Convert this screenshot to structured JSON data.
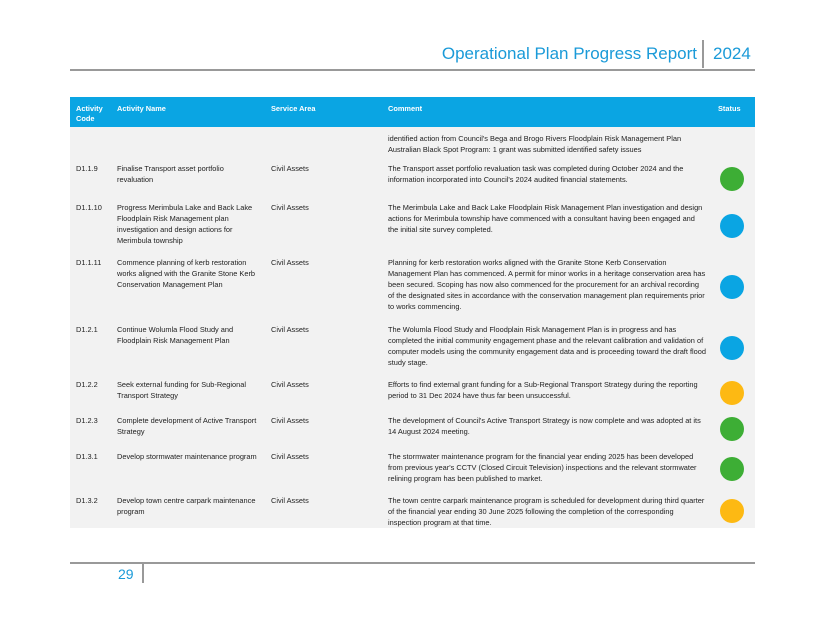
{
  "header": {
    "title": "Operational Plan Progress Report",
    "year": "2024"
  },
  "table": {
    "columns": [
      "Activity Code",
      "Activity Name",
      "Service Area",
      "Comment",
      "Status"
    ],
    "rows": [
      {
        "comment": "identified action from Council's Bega and Brogo Rivers Floodplain Risk Management Plan Australian Black Spot Program:  1 grant was submitted identified safety issues"
      },
      {
        "code": "D1.1.9",
        "name": "Finalise Transport asset portfolio revaluation",
        "area": "Civil Assets",
        "comment": "The Transport asset portfolio revaluation task was completed during October 2024 and the information incorporated into Council's 2024 audited financial statements.",
        "status_color": "#3dae35"
      },
      {
        "code": "D1.1.10",
        "name": "Progress Merimbula Lake and Back Lake Floodplain Risk Management plan investigation and design actions for Merimbula township",
        "area": "Civil Assets",
        "comment": "The Merimbula Lake and Back Lake Floodplain Risk Management Plan investigation and design actions for Merimbula township have commenced with a consultant having been engaged and the initial site survey completed.",
        "status_color": "#0aa5e3"
      },
      {
        "code": "D1.1.11",
        "name": "Commence planning of kerb restoration works aligned with the Granite Stone Kerb Conservation Management Plan",
        "area": "Civil Assets",
        "comment": "Planning for kerb restoration works aligned with the Granite Stone Kerb Conservation Management Plan has commenced.  A permit for minor works in a heritage conservation area has been secured.  Scoping has now also commenced for the procurement for an archival recording of the designated sites in accordance with the conservation management plan requirements prior to works commencing.",
        "status_color": "#0aa5e3"
      },
      {
        "code": "D1.2.1",
        "name": "Continue Wolumla Flood Study and Floodplain Risk Management Plan",
        "area": "Civil Assets",
        "comment": "The Wolumla Flood Study and Floodplain Risk Management Plan is in progress and has completed the initial community engagement phase and the relevant calibration and validation of computer models using the community engagement data and is proceeding toward the draft flood study stage.",
        "status_color": "#0aa5e3"
      },
      {
        "code": "D1.2.2",
        "name": "Seek external funding for Sub-Regional Transport Strategy",
        "area": "Civil Assets",
        "comment": "Efforts to find external grant funding for a Sub-Regional Transport Strategy during the reporting period to 31 Dec 2024 have thus far been unsuccessful.",
        "status_color": "#fdb913"
      },
      {
        "code": "D1.2.3",
        "name": "Complete development of Active Transport Strategy",
        "area": "Civil Assets",
        "comment": "The development of Council's Active Transport Strategy is now complete and was adopted at its 14 August 2024 meeting.",
        "status_color": "#3dae35"
      },
      {
        "code": "D1.3.1",
        "name": "Develop stormwater maintenance program",
        "area": "Civil Assets",
        "comment": "The stormwater maintenance program for the financial year ending 2025 has been developed from previous year's CCTV (Closed Circuit Television) inspections and the relevant stormwater relining program has been published to market.",
        "status_color": "#3dae35"
      },
      {
        "code": "D1.3.2",
        "name": "Develop town centre carpark maintenance program",
        "area": "Civil Assets",
        "comment": "The town centre carpark maintenance program is scheduled for development during third quarter of the financial year ending 30 June 2025 following the completion of the corresponding inspection program at that time.",
        "status_color": "#fdb913"
      }
    ]
  },
  "footer": {
    "page": "29"
  }
}
